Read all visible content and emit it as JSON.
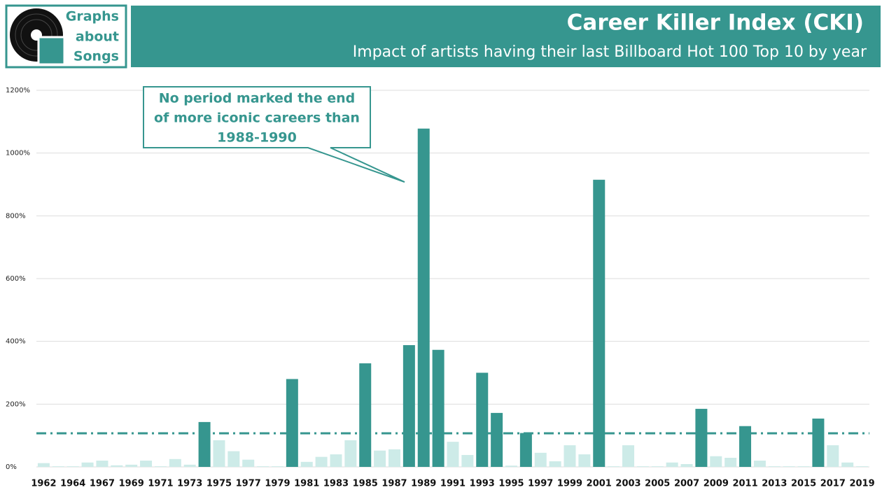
{
  "header": {
    "logo": [
      "Graphs",
      "about",
      "Songs"
    ]
  },
  "chart_data": {
    "type": "bar",
    "title": "Career Killer Index (CKI)",
    "subtitle": "Impact of artists having their last Billboard Hot 100  Top 10 by year",
    "annotation": [
      "No period marked the end",
      "of more iconic careers than",
      "1988-1990"
    ],
    "categories": [
      "1962",
      null,
      "1964",
      null,
      "1967",
      null,
      "1969",
      null,
      "1971",
      null,
      "1973",
      null,
      "1975",
      null,
      "1977",
      null,
      "1979",
      null,
      "1981",
      null,
      "1983",
      null,
      "1985",
      null,
      "1987",
      null,
      "1989",
      null,
      "1991",
      null,
      "1993",
      null,
      "1995",
      null,
      "1997",
      null,
      "1999",
      null,
      "2001",
      null,
      "2003",
      null,
      "2005",
      null,
      "2007",
      null,
      "2009",
      null,
      "2011",
      null,
      "2013",
      null,
      "2015",
      null,
      "2017",
      null,
      "2019"
    ],
    "values": [
      12,
      2,
      2,
      14,
      20,
      5,
      7,
      20,
      2,
      25,
      7,
      143,
      85,
      50,
      23,
      2,
      2,
      280,
      16,
      32,
      40,
      85,
      330,
      52,
      56,
      388,
      1078,
      373,
      80,
      38,
      300,
      172,
      4,
      108,
      45,
      18,
      69,
      40,
      915,
      2,
      69,
      2,
      2,
      14,
      9,
      185,
      34,
      29,
      130,
      20,
      2,
      2,
      2,
      154,
      69,
      14,
      2
    ],
    "threshold": 107,
    "color_above": "#36968f",
    "color_below": "#cdebe8",
    "threshold_color": "#36968f",
    "ylim": [
      0,
      1200
    ],
    "yticks": [
      {
        "value": 0,
        "label": "0%"
      },
      {
        "value": 200,
        "label": "200%"
      },
      {
        "value": 400,
        "label": "400%"
      },
      {
        "value": 600,
        "label": "600%"
      },
      {
        "value": 800,
        "label": "800%"
      },
      {
        "value": 1000,
        "label": "1000%"
      },
      {
        "value": 1200,
        "label": "1200%"
      }
    ],
    "grid": true
  }
}
